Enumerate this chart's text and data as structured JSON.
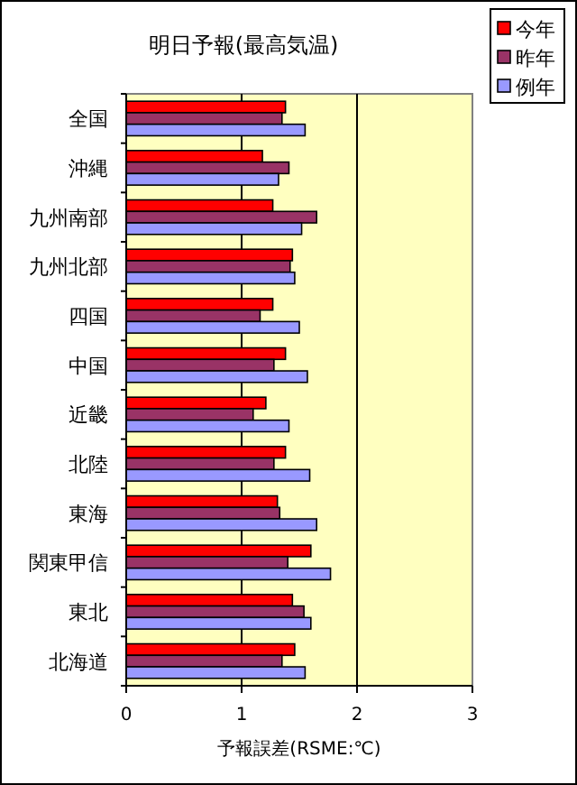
{
  "chart_data": {
    "type": "bar",
    "orientation": "horizontal",
    "title": "明日予報(最高気温)",
    "xlabel": "予報誤差(RSME:℃)",
    "categories": [
      "全国",
      "沖縄",
      "九州南部",
      "九州北部",
      "四国",
      "中国",
      "近畿",
      "北陸",
      "東海",
      "関東甲信",
      "東北",
      "北海道"
    ],
    "series": [
      {
        "name": "今年",
        "color": "#ff0000",
        "values": [
          1.38,
          1.18,
          1.27,
          1.44,
          1.27,
          1.38,
          1.21,
          1.38,
          1.31,
          1.6,
          1.44,
          1.46
        ]
      },
      {
        "name": "昨年",
        "color": "#993366",
        "values": [
          1.35,
          1.41,
          1.65,
          1.42,
          1.16,
          1.28,
          1.1,
          1.28,
          1.33,
          1.4,
          1.54,
          1.35
        ]
      },
      {
        "name": "例年",
        "color": "#9999ff",
        "values": [
          1.55,
          1.32,
          1.52,
          1.46,
          1.5,
          1.57,
          1.41,
          1.59,
          1.65,
          1.77,
          1.6,
          1.55
        ]
      }
    ],
    "xlim": [
      0,
      3
    ],
    "xticks": [
      0,
      1,
      2,
      3
    ],
    "grid": "x",
    "legend": "top right"
  }
}
